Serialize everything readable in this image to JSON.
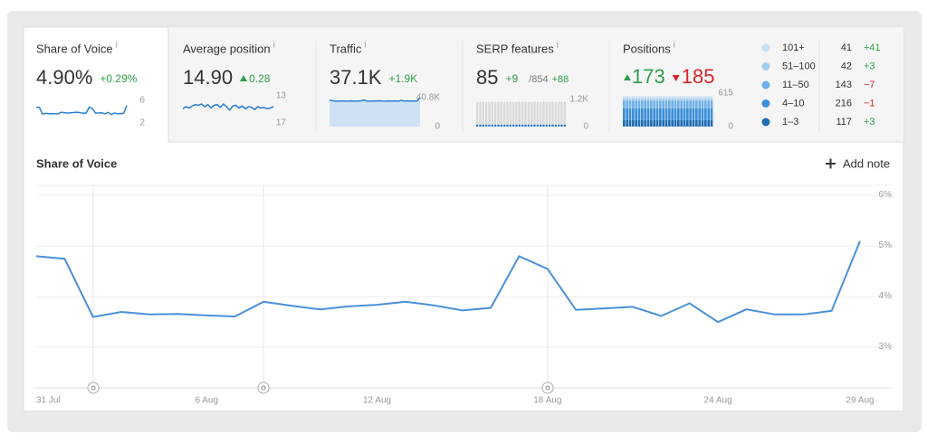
{
  "info": "i",
  "cards": [
    {
      "title": "Share of Voice",
      "value": "4.90%",
      "change": "+0.29%",
      "spark_ticks": [
        6,
        2
      ]
    },
    {
      "title": "Average position",
      "value": "14.90",
      "change": "0.28",
      "spark_ticks": [
        13,
        17
      ],
      "spark": [
        14.9,
        14.6,
        14.8,
        14.5,
        14.3,
        14.4,
        14.2,
        14.6,
        14.3,
        14.8,
        14.4,
        14.3,
        14.7,
        14.2,
        14.6,
        15.1,
        14.5,
        14.4,
        14.8,
        14.5,
        14.9,
        14.6,
        14.7,
        15.0,
        14.6,
        14.8,
        14.7,
        14.9,
        14.8,
        14.6
      ]
    },
    {
      "title": "Traffic",
      "value": "37.1K",
      "change": "+1.9K",
      "spark_ticks": [
        {
          "value": 40800,
          "label": "40.8K"
        },
        0
      ],
      "spark": [
        37200,
        36500,
        35800,
        36000,
        36100,
        35900,
        36000,
        36200,
        35800,
        36000,
        36100,
        37500,
        36000,
        35900,
        36100,
        36000,
        36300,
        36000,
        35800,
        36200,
        36000,
        36100,
        35900,
        37000,
        36000,
        36100,
        36000,
        36200,
        36000,
        40800
      ]
    },
    {
      "title": "SERP features",
      "value": "85",
      "change": "+9",
      "total": "/854",
      "total_change": "+88",
      "spark_ticks": [
        {
          "value": 1200,
          "label": "1.2K"
        },
        0
      ],
      "spark": [
        1080,
        1090,
        1100,
        1080,
        1090,
        1100,
        1090,
        1080,
        1100,
        1090,
        1100,
        1090,
        1080,
        1090,
        1100,
        1100,
        1090,
        1080,
        1090,
        1100,
        1090,
        1080,
        1100,
        1090,
        1090,
        1100,
        1080,
        1090,
        1100,
        1090
      ]
    },
    {
      "title": "Positions",
      "up": "173",
      "down": "185",
      "spark_ticks": [
        615,
        0
      ]
    }
  ],
  "positions_legend": [
    {
      "name": "101+",
      "count": 41,
      "change": "+41",
      "color": "#c8e0f6"
    },
    {
      "name": "51–100",
      "count": 42,
      "change": "+3",
      "color": "#a3cdf0"
    },
    {
      "name": "11–50",
      "count": 143,
      "change": "−7",
      "color": "#6fb0e8"
    },
    {
      "name": "4–10",
      "count": 216,
      "change": "−1",
      "color": "#3c8fd9"
    },
    {
      "name": "1–3",
      "count": 117,
      "change": "+3",
      "color": "#1f6fb5"
    }
  ],
  "actions": {
    "add_note": "Add note"
  },
  "chart_data": {
    "type": "line",
    "title": "Share of Voice",
    "x": [
      "31 Jul",
      null,
      null,
      null,
      null,
      null,
      "6 Aug",
      null,
      null,
      null,
      null,
      null,
      "12 Aug",
      null,
      null,
      null,
      null,
      null,
      "18 Aug",
      null,
      null,
      null,
      null,
      null,
      "24 Aug",
      null,
      null,
      null,
      null,
      "29 Aug"
    ],
    "series": [
      {
        "color": "#4a90d9",
        "values": [
          4.8,
          4.75,
          3.6,
          3.7,
          3.65,
          3.66,
          3.63,
          3.61,
          3.9,
          3.82,
          3.75,
          3.81,
          3.84,
          3.9,
          3.83,
          3.73,
          3.78,
          4.8,
          4.55,
          3.74,
          3.77,
          3.8,
          3.62,
          3.87,
          3.5,
          3.75,
          3.65,
          3.65,
          3.72,
          5.1
        ]
      }
    ],
    "ylim": [
      2.2,
      6.2
    ],
    "yticks": [
      {
        "value": 3,
        "label": "3%"
      },
      {
        "value": 4,
        "label": "4%"
      },
      {
        "value": 5,
        "label": "5%"
      },
      {
        "value": 6,
        "label": "6%"
      }
    ],
    "grid": true
  }
}
